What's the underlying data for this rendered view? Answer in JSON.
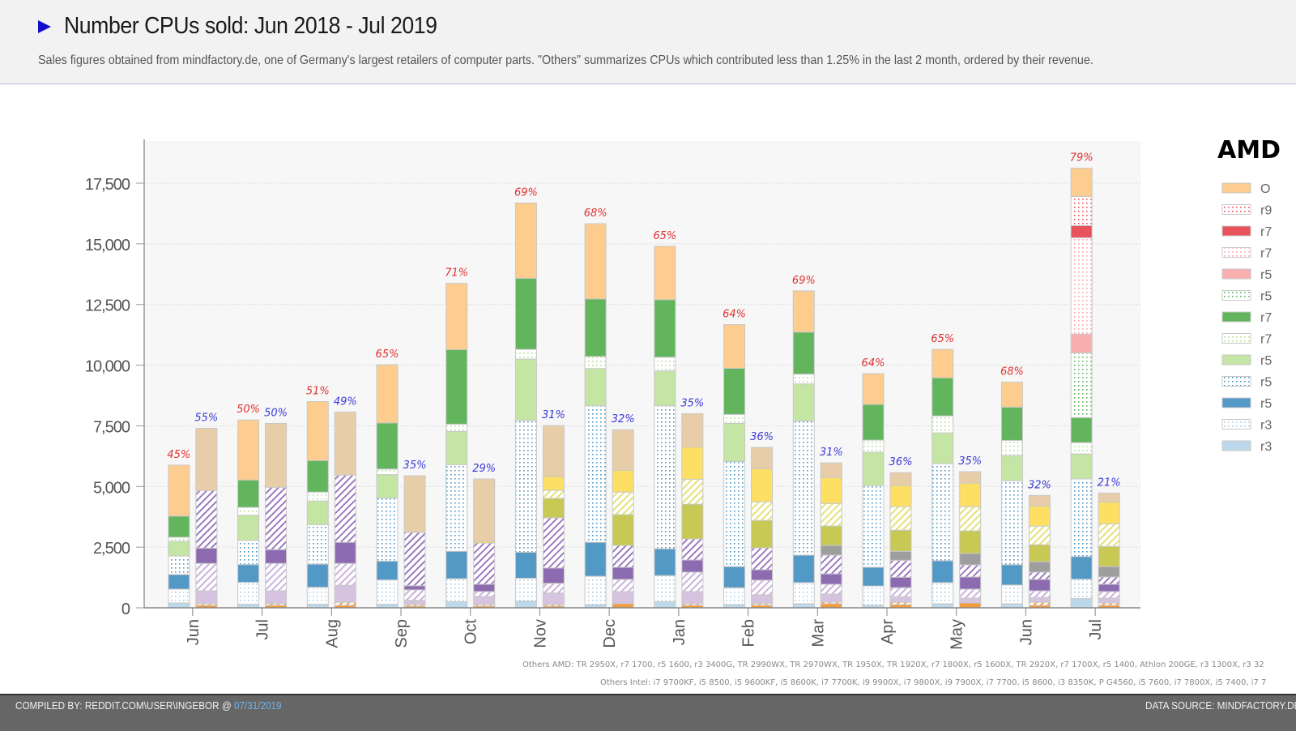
{
  "header": {
    "title": "Number CPUs sold: Jun 2018 - Jul 2019",
    "subtitle": "Sales figures obtained from mindfactory.de, one of Germany's largest retailers of computer parts. \"Others\" summarizes CPUs which contributed less than 1.25% in the last 2 month, ordered by their revenue."
  },
  "footer": {
    "compiled_by": "COMPILED BY: REDDIT.COM\\USER\\INGEBOR @",
    "date": "07/31/2019",
    "data_source": "DATA SOURCE: MINDFACTORY.DE"
  },
  "notes": {
    "others_amd": "Others AMD: TR 2950X, r7 1700, r5 1600, r3 3400G, TR 2990WX, TR 2970WX, TR 1950X, TR 1920X, r7 1800X, r5 1600X, TR 2920X, r7 1700X, r5 1400, Athlon 200GE, r3 1300X, r3 32",
    "others_intel": "Others Intel: i7 9700KF, i5 8500, i5 9600KF, i5 8600K, i7 7700K, i9 9900X, i7 9800X, i9 7900X, i7 7700, i5 8600, i3 8350K, P G4560, i5 7600, i7 7800X, i5 7400, i7 7"
  },
  "legend": {
    "title": "AMD",
    "items": [
      {
        "label": "O",
        "color": "#fdcc8f",
        "pattern": "solid"
      },
      {
        "label": "r9",
        "color": "#e8525a",
        "pattern": "dots"
      },
      {
        "label": "r7",
        "color": "#e8525a",
        "pattern": "solid"
      },
      {
        "label": "r7",
        "color": "#f5a5aa",
        "pattern": "dots"
      },
      {
        "label": "r5",
        "color": "#f9afb0",
        "pattern": "solid"
      },
      {
        "label": "r5",
        "color": "#62b55c",
        "pattern": "dots"
      },
      {
        "label": "r7",
        "color": "#62b55c",
        "pattern": "solid"
      },
      {
        "label": "r7",
        "color": "#b5dc94",
        "pattern": "dots"
      },
      {
        "label": "r5",
        "color": "#c4e5a3",
        "pattern": "solid"
      },
      {
        "label": "r5",
        "color": "#4f96c6",
        "pattern": "dots"
      },
      {
        "label": "r5",
        "color": "#5399c6",
        "pattern": "solid"
      },
      {
        "label": "r3",
        "color": "#a9cde6",
        "pattern": "dots"
      },
      {
        "label": "r3",
        "color": "#bcd8ea",
        "pattern": "solid"
      }
    ]
  },
  "chart_data": {
    "type": "bar",
    "subtype": "stacked-grouped",
    "title": "Number CPUs sold: Jun 2018 - Jul 2019",
    "xlabel": "",
    "ylabel": "",
    "ylim": [
      0,
      19300
    ],
    "yticks": [
      0,
      2500,
      5000,
      7500,
      10000,
      12500,
      15000,
      17500
    ],
    "ytick_labels": [
      "0",
      "2,500",
      "5,000",
      "7,500",
      "10,000",
      "12,500",
      "15,000",
      "17,500"
    ],
    "grid": true,
    "legend_position": "right",
    "categories": [
      "Jun",
      "Jul",
      "Aug",
      "Sep",
      "Oct",
      "Nov",
      "Dec",
      "Jan",
      "Feb",
      "Mar",
      "Apr",
      "May",
      "Jun",
      "Jul"
    ],
    "amd_share_labels": [
      "45%",
      "50%",
      "51%",
      "65%",
      "71%",
      "69%",
      "68%",
      "65%",
      "64%",
      "69%",
      "64%",
      "65%",
      "68%",
      "79%"
    ],
    "intel_share_labels": [
      "55%",
      "50%",
      "49%",
      "35%",
      "29%",
      "31%",
      "32%",
      "35%",
      "36%",
      "31%",
      "36%",
      "35%",
      "32%",
      "21%"
    ],
    "amd_label_color": "#e03030",
    "intel_label_color": "#3a3ad8",
    "amd_series": [
      {
        "name": "r3 (solid)",
        "color": "#bcd8ea",
        "pattern": "solid",
        "values": [
          200,
          150,
          150,
          150,
          250,
          270,
          130,
          250,
          130,
          170,
          100,
          170,
          170,
          380
        ]
      },
      {
        "name": "r3 (dotted)",
        "color": "#a9cde6",
        "pattern": "dots",
        "values": [
          570,
          900,
          700,
          1000,
          950,
          950,
          1170,
          1080,
          700,
          870,
          800,
          870,
          770,
          800
        ]
      },
      {
        "name": "r5 (solid)",
        "color": "#5399c6",
        "pattern": "solid",
        "values": [
          600,
          730,
          950,
          770,
          1130,
          1070,
          1400,
          1100,
          870,
          1130,
          770,
          900,
          830,
          930
        ]
      },
      {
        "name": "r5 (dotted blue)",
        "color": "#4f96c6",
        "pattern": "dots",
        "values": [
          770,
          1000,
          1630,
          2600,
          3570,
          5430,
          5630,
          5900,
          4330,
          5530,
          3370,
          4000,
          3470,
          3200
        ]
      },
      {
        "name": "r5 (light green)",
        "color": "#c4e5a3",
        "pattern": "solid",
        "values": [
          600,
          1030,
          970,
          970,
          1370,
          2530,
          1530,
          1430,
          1570,
          1530,
          1370,
          1270,
          1030,
          1030
        ]
      },
      {
        "name": "r7 (dotted light green)",
        "color": "#b5dc94",
        "pattern": "dots",
        "values": [
          170,
          330,
          370,
          230,
          300,
          400,
          500,
          570,
          370,
          400,
          500,
          700,
          630,
          470
        ]
      },
      {
        "name": "r7 (green)",
        "color": "#62b55c",
        "pattern": "solid",
        "values": [
          870,
          1130,
          1300,
          1900,
          3070,
          2930,
          2370,
          2370,
          1900,
          1730,
          1470,
          1570,
          1370,
          1030
        ]
      },
      {
        "name": "r5 (dotted green)",
        "color": "#62b55c",
        "pattern": "dots",
        "values": [
          0,
          0,
          0,
          0,
          0,
          0,
          0,
          0,
          0,
          0,
          0,
          0,
          0,
          2670
        ]
      },
      {
        "name": "r5 (pink)",
        "color": "#f9afb0",
        "pattern": "solid",
        "values": [
          0,
          0,
          0,
          0,
          0,
          0,
          0,
          0,
          0,
          0,
          0,
          0,
          0,
          770
        ]
      },
      {
        "name": "r7 (dotted pink)",
        "color": "#f5a5aa",
        "pattern": "dots",
        "values": [
          0,
          0,
          0,
          0,
          0,
          0,
          0,
          0,
          0,
          0,
          0,
          0,
          0,
          3970
        ]
      },
      {
        "name": "r7 (red)",
        "color": "#e8525a",
        "pattern": "solid",
        "values": [
          0,
          0,
          0,
          0,
          0,
          0,
          0,
          0,
          0,
          0,
          0,
          0,
          0,
          500
        ]
      },
      {
        "name": "r9 (dotted red)",
        "color": "#e8525a",
        "pattern": "dots",
        "values": [
          0,
          0,
          0,
          0,
          0,
          0,
          0,
          0,
          0,
          0,
          0,
          0,
          0,
          1200
        ]
      },
      {
        "name": "Others AMD",
        "color": "#fdcc8f",
        "pattern": "solid",
        "values": [
          2100,
          2470,
          2430,
          2400,
          2730,
          3100,
          3100,
          2200,
          1800,
          1700,
          1270,
          1170,
          1030,
          1170
        ]
      }
    ],
    "intel_series": [
      {
        "name": "Intel orange (solid)",
        "color": "#f39a3a",
        "pattern": "solid",
        "values": [
          100,
          100,
          100,
          70,
          70,
          70,
          170,
          100,
          100,
          170,
          130,
          200,
          100,
          100
        ]
      },
      {
        "name": "Intel orange (hatched)",
        "color": "#f39a3a",
        "pattern": "hatch",
        "values": [
          70,
          70,
          130,
          70,
          70,
          70,
          0,
          70,
          70,
          70,
          100,
          0,
          130,
          100
        ]
      },
      {
        "name": "Intel light purple",
        "color": "#d5c3df",
        "pattern": "solid",
        "values": [
          530,
          530,
          700,
          170,
          330,
          470,
          500,
          500,
          370,
          330,
          230,
          200,
          200,
          200
        ]
      },
      {
        "name": "Intel purple (hatched light)",
        "color": "#c9b2dd",
        "pattern": "hatch",
        "values": [
          1130,
          1130,
          900,
          430,
          200,
          400,
          500,
          800,
          600,
          400,
          370,
          370,
          270,
          270
        ]
      },
      {
        "name": "Intel purple (solid)",
        "color": "#8d6bb1",
        "pattern": "solid",
        "values": [
          630,
          570,
          870,
          170,
          300,
          630,
          500,
          500,
          430,
          430,
          430,
          500,
          470,
          300
        ]
      },
      {
        "name": "Intel purple (hatched dark)",
        "color": "#9a7bbf",
        "pattern": "hatch",
        "values": [
          2370,
          2570,
          2770,
          2200,
          1700,
          2070,
          900,
          870,
          900,
          770,
          700,
          500,
          300,
          300
        ]
      },
      {
        "name": "Intel gray",
        "color": "#9e9e9e",
        "pattern": "solid",
        "values": [
          0,
          0,
          0,
          0,
          0,
          0,
          0,
          0,
          0,
          400,
          370,
          470,
          430,
          430
        ]
      },
      {
        "name": "Intel olive",
        "color": "#c8c855",
        "pattern": "solid",
        "values": [
          0,
          0,
          0,
          0,
          0,
          800,
          1270,
          1430,
          1130,
          800,
          870,
          930,
          700,
          830
        ]
      },
      {
        "name": "Intel yellow (hatched)",
        "color": "#e2e27a",
        "pattern": "hatch",
        "values": [
          0,
          0,
          0,
          0,
          0,
          330,
          930,
          1030,
          770,
          930,
          970,
          1000,
          770,
          930
        ]
      },
      {
        "name": "Intel yellow",
        "color": "#fde063",
        "pattern": "solid",
        "values": [
          0,
          0,
          0,
          0,
          70,
          570,
          900,
          1330,
          1370,
          1070,
          870,
          970,
          830,
          900
        ]
      },
      {
        "name": "Others Intel",
        "color": "#e8cea8",
        "pattern": "solid",
        "values": [
          2570,
          2630,
          2600,
          2330,
          2570,
          2100,
          1670,
          1370,
          870,
          600,
          530,
          470,
          430,
          370
        ]
      }
    ]
  }
}
